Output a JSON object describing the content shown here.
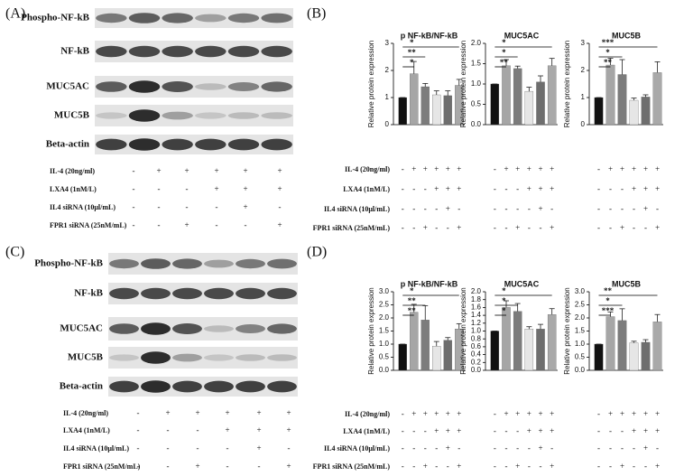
{
  "panel_labels": [
    "(A)",
    "(B)",
    "(C)",
    "(D)"
  ],
  "blots": [
    {
      "bands": [
        "Phospho-NF-kB",
        "NF-kB",
        "MUC5AC",
        "MUC5B",
        "Beta-actin"
      ]
    },
    {
      "bands": [
        "Phospho-NF-kB",
        "NF-kB",
        "MUC5AC",
        "MUC5B",
        "Beta-actin"
      ]
    }
  ],
  "treatments": [
    {
      "name": "IL-4 (20ng/ml)",
      "signs": [
        "-",
        "+",
        "+",
        "+",
        "+",
        "+"
      ]
    },
    {
      "name": "LXA4 (1nM/L)",
      "signs": [
        "-",
        "-",
        "-",
        "+",
        "+",
        "+"
      ]
    },
    {
      "name": "IL4  siRNA (10μl/mL)",
      "signs": [
        "-",
        "-",
        "-",
        "-",
        "+",
        "-"
      ]
    },
    {
      "name": "FPR1 siRNA (25nM/mL)",
      "signs": [
        "-",
        "-",
        "+",
        "-",
        "-",
        "+"
      ]
    }
  ],
  "chart_data": [
    {
      "type": "bar",
      "title": "p NF-kB/NF-kB",
      "ylabel": "Relative protein expression",
      "values": [
        1,
        1.88,
        1.4,
        1.1,
        1.07,
        1.45
      ],
      "errors": [
        0,
        0.45,
        0.12,
        0.15,
        0.18,
        0.22
      ],
      "colors": [
        "#111111",
        "#a6a6a6",
        "#7c7c7c",
        "#e6e6e6",
        "#6e6e6e",
        "#a9a9a9"
      ],
      "ylim": [
        0,
        3
      ],
      "yticks": [
        0,
        1,
        2,
        3
      ],
      "annotations": [
        "*",
        "**",
        "*"
      ]
    },
    {
      "type": "bar",
      "title": "MUC5AC",
      "ylabel": "Relative protein expression",
      "values": [
        1,
        1.45,
        1.38,
        0.82,
        1.05,
        1.45
      ],
      "errors": [
        0,
        0.15,
        0.06,
        0.1,
        0.15,
        0.18
      ],
      "colors": [
        "#111111",
        "#a6a6a6",
        "#7c7c7c",
        "#e6e6e6",
        "#6e6e6e",
        "#a9a9a9"
      ],
      "ylim": [
        0,
        2
      ],
      "yticks": [
        {
          "value": 0,
          "label": "0.0"
        },
        {
          "value": 0.5,
          "label": "0.5"
        },
        {
          "value": 1,
          "label": "1.0"
        },
        {
          "value": 1.5,
          "label": "1.5"
        },
        {
          "value": 2,
          "label": "2.0"
        }
      ],
      "annotations": [
        "**",
        "*",
        "*"
      ]
    },
    {
      "type": "bar",
      "title": "MUC5B",
      "ylabel": "Relative protein expression",
      "values": [
        1,
        2.2,
        1.85,
        0.9,
        1.02,
        1.92
      ],
      "errors": [
        0,
        0.25,
        0.55,
        0.08,
        0.08,
        0.4
      ],
      "colors": [
        "#111111",
        "#a6a6a6",
        "#7c7c7c",
        "#e6e6e6",
        "#6e6e6e",
        "#a9a9a9"
      ],
      "ylim": [
        0,
        3
      ],
      "yticks": [
        0,
        1,
        2,
        3
      ],
      "annotations": [
        "**",
        "*",
        "***"
      ]
    },
    {
      "type": "bar",
      "title": "p NF-kB/NF-kB",
      "ylabel": "Relative protein expression",
      "values": [
        1,
        2.22,
        1.92,
        0.92,
        1.15,
        1.58
      ],
      "errors": [
        0,
        0.3,
        0.55,
        0.18,
        0.1,
        0.2
      ],
      "colors": [
        "#111111",
        "#a6a6a6",
        "#7c7c7c",
        "#e6e6e6",
        "#6e6e6e",
        "#a9a9a9"
      ],
      "ylim": [
        0,
        3
      ],
      "yticks": [
        {
          "value": 0,
          "label": "0.0"
        },
        {
          "value": 0.5,
          "label": "0.5"
        },
        {
          "value": 1,
          "label": "1.0"
        },
        {
          "value": 1.5,
          "label": "1.5"
        },
        {
          "value": 2,
          "label": "2.0"
        },
        {
          "value": 2.5,
          "label": "2.5"
        },
        {
          "value": 3,
          "label": "3.0"
        }
      ],
      "annotations": [
        "**",
        "**",
        "*"
      ]
    },
    {
      "type": "bar",
      "title": "MUC5AC",
      "ylabel": "Relative protein expression",
      "values": [
        1,
        1.6,
        1.5,
        1.05,
        1.05,
        1.42
      ],
      "errors": [
        0,
        0.17,
        0.2,
        0.06,
        0.12,
        0.15
      ],
      "colors": [
        "#111111",
        "#a6a6a6",
        "#7c7c7c",
        "#e6e6e6",
        "#6e6e6e",
        "#a9a9a9"
      ],
      "ylim": [
        0,
        2
      ],
      "yticks": [
        {
          "value": 0,
          "label": "0.0"
        },
        {
          "value": 0.2,
          "label": "0.2"
        },
        {
          "value": 0.4,
          "label": "0.4"
        },
        {
          "value": 0.6,
          "label": "0.6"
        },
        {
          "value": 0.8,
          "label": "0.8"
        },
        {
          "value": 1,
          "label": "1.0"
        },
        {
          "value": 1.2,
          "label": "1.2"
        },
        {
          "value": 1.4,
          "label": "1.4"
        },
        {
          "value": 1.6,
          "label": "1.6"
        },
        {
          "value": 1.8,
          "label": "1.8"
        },
        {
          "value": 2,
          "label": "2.0"
        }
      ],
      "annotations": [
        "*",
        "*",
        "*"
      ]
    },
    {
      "type": "bar",
      "title": "MUC5B",
      "ylabel": "Relative protein expression",
      "values": [
        1,
        2.05,
        1.9,
        1.05,
        1.07,
        1.85
      ],
      "errors": [
        0,
        0.18,
        0.45,
        0.06,
        0.1,
        0.28
      ],
      "colors": [
        "#111111",
        "#a6a6a6",
        "#7c7c7c",
        "#e6e6e6",
        "#6e6e6e",
        "#a9a9a9"
      ],
      "ylim": [
        0,
        3
      ],
      "yticks": [
        {
          "value": 0,
          "label": "0.0"
        },
        {
          "value": 0.5,
          "label": "0.5"
        },
        {
          "value": 1,
          "label": "1.0"
        },
        {
          "value": 1.5,
          "label": "1.5"
        },
        {
          "value": 2,
          "label": "2.0"
        },
        {
          "value": 2.5,
          "label": "2.5"
        },
        {
          "value": 3,
          "label": "3.0"
        }
      ],
      "annotations": [
        "***",
        "*",
        "**"
      ]
    }
  ]
}
